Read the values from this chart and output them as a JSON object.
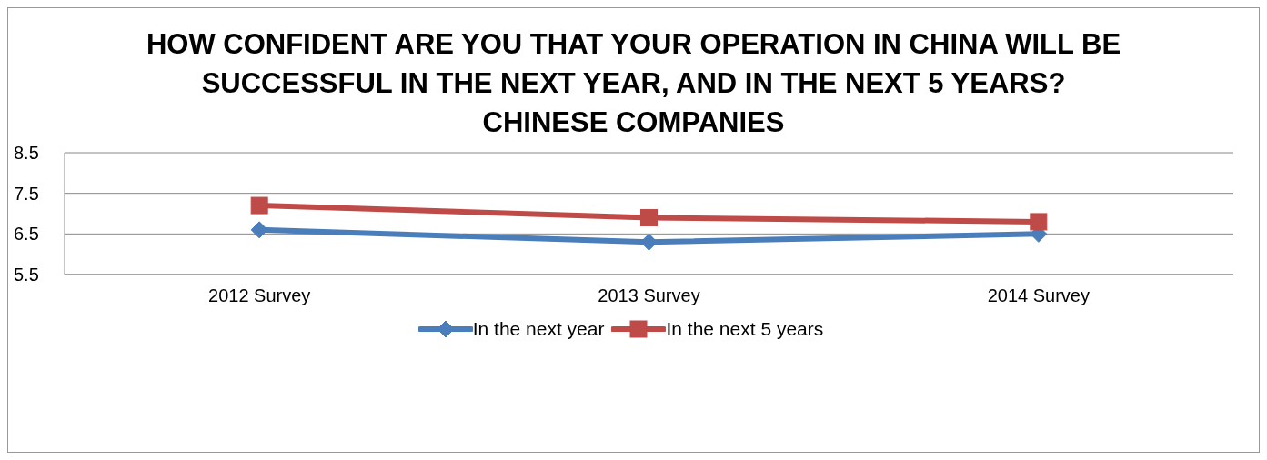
{
  "chart_data": {
    "type": "line",
    "title": "HOW CONFIDENT ARE YOU THAT YOUR OPERATION IN CHINA WILL BE SUCCESSFUL IN THE NEXT YEAR, AND IN THE NEXT 5 YEARS?",
    "subtitle": "CHINESE COMPANIES",
    "categories": [
      "2012 Survey",
      "2013 Survey",
      "2014 Survey"
    ],
    "series": [
      {
        "name": "In the next year",
        "color": "#4a7ebb",
        "values": [
          6.6,
          6.3,
          6.5
        ],
        "marker": "diamond"
      },
      {
        "name": "In the next 5 years",
        "color": "#be4b48",
        "values": [
          7.2,
          6.9,
          6.8
        ],
        "marker": "square"
      }
    ],
    "ylim": [
      5.5,
      8.5
    ],
    "yticks": [
      5.5,
      6.5,
      7.5,
      8.5
    ],
    "grid": "y",
    "legend": "bottom"
  }
}
